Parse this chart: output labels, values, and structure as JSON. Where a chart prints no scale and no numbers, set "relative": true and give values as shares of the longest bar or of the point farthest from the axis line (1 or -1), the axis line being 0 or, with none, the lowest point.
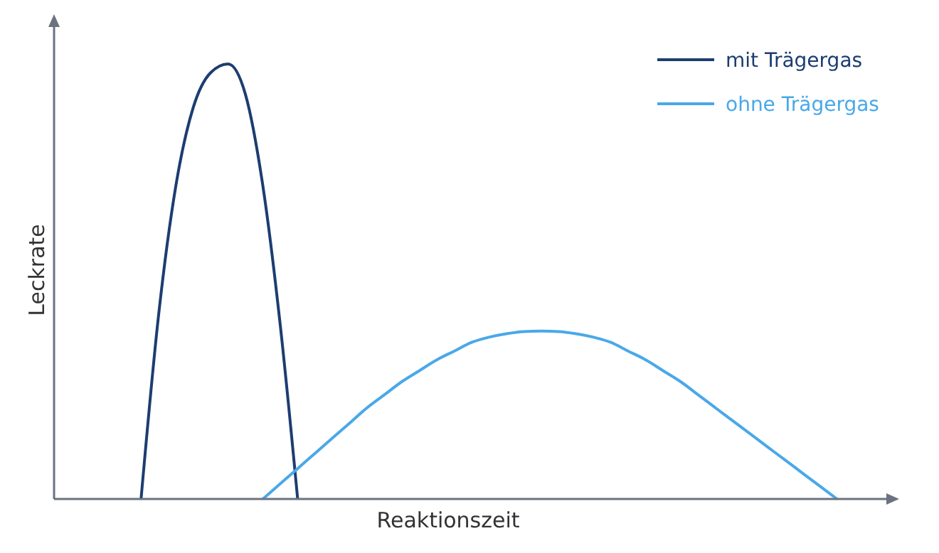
{
  "chart_data": {
    "type": "line",
    "relative": true,
    "xlabel": "Reaktionszeit",
    "ylabel": "Leckrate",
    "legend": "top right",
    "line_style": "solid",
    "categories": [
      null,
      null,
      null,
      null,
      null,
      null,
      null,
      null,
      null,
      null,
      null,
      null,
      null,
      null,
      null,
      null,
      null,
      null,
      null,
      null,
      null,
      null,
      null,
      null,
      null,
      null,
      null,
      null,
      null,
      null,
      null,
      null,
      null,
      null,
      null,
      null,
      null,
      null,
      null,
      null,
      null,
      null,
      null,
      null,
      null,
      null,
      null,
      null,
      null
    ],
    "series": [
      {
        "name": "mit Trägergas",
        "color": "#1d3d70",
        "values": [
          null,
          null,
          null,
          null,
          null,
          0,
          0.42,
          0.72,
          0.9,
          0.98,
          1,
          0.93,
          0.72,
          0.4,
          0,
          null,
          null,
          null,
          null,
          null,
          null,
          null,
          null,
          null,
          null,
          null,
          null,
          null,
          null,
          null,
          null,
          null,
          null,
          null,
          null,
          null,
          null,
          null,
          null,
          null,
          null,
          null,
          null,
          null,
          null,
          null,
          null,
          null,
          null
        ]
      },
      {
        "name": "ohne Trägergas",
        "color": "#4aa8e8",
        "values": [
          null,
          null,
          null,
          null,
          null,
          null,
          null,
          null,
          null,
          null,
          null,
          null,
          0,
          0.035,
          0.07,
          0.105,
          0.14,
          0.175,
          0.21,
          0.24,
          0.27,
          0.295,
          0.32,
          0.34,
          0.36,
          0.372,
          0.38,
          0.385,
          0.386,
          0.385,
          0.38,
          0.372,
          0.36,
          0.34,
          0.32,
          0.295,
          0.27,
          0.24,
          0.21,
          0.18,
          0.15,
          0.12,
          0.09,
          0.06,
          0.03,
          0,
          null,
          null,
          null
        ]
      }
    ]
  }
}
